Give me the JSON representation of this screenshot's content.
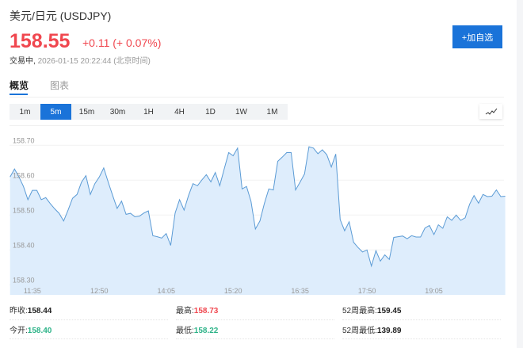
{
  "header": {
    "title": "美元/日元 (USDJPY)",
    "price": "158.55",
    "change": "+0.11 (+ 0.07%)",
    "status_label": "交易中,",
    "timestamp": "2026-01-15 20:22:44 (北京时间)",
    "add_button": "+加自选"
  },
  "tabs": [
    {
      "label": "概览",
      "active": true
    },
    {
      "label": "图表",
      "active": false
    }
  ],
  "intervals": [
    {
      "label": "1m"
    },
    {
      "label": "5m",
      "active": true
    },
    {
      "label": "15m"
    },
    {
      "label": "30m"
    },
    {
      "label": "1H"
    },
    {
      "label": "4H"
    },
    {
      "label": "1D"
    },
    {
      "label": "1W"
    },
    {
      "label": "1M"
    }
  ],
  "chart_type_icon": "line-chart-icon",
  "colors": {
    "up": "#f0474f",
    "down": "#2db388",
    "accent": "#1a73d9",
    "line": "#5b9bd5",
    "fill": "#deedfc"
  },
  "chart_data": {
    "type": "area",
    "ylim": [
      158.3,
      158.72
    ],
    "yticks": [
      "158.30",
      "158.40",
      "158.50",
      "158.60",
      "158.70"
    ],
    "xticks": [
      "11:35",
      "12:50",
      "14:05",
      "15:20",
      "16:35",
      "17:50",
      "19:05"
    ],
    "grid": true,
    "x": [
      "11:10",
      "11:15",
      "11:20",
      "11:25",
      "11:30",
      "11:35",
      "11:40",
      "11:45",
      "11:50",
      "11:55",
      "12:00",
      "12:05",
      "12:10",
      "12:15",
      "12:20",
      "12:25",
      "12:30",
      "12:35",
      "12:40",
      "12:45",
      "12:50",
      "12:55",
      "13:00",
      "13:05",
      "13:10",
      "13:15",
      "13:20",
      "13:25",
      "13:30",
      "13:35",
      "13:40",
      "13:45",
      "13:50",
      "13:55",
      "14:00",
      "14:05",
      "14:10",
      "14:15",
      "14:20",
      "14:25",
      "14:30",
      "14:35",
      "14:40",
      "14:45",
      "14:50",
      "14:55",
      "15:00",
      "15:05",
      "15:10",
      "15:15",
      "15:20",
      "15:25",
      "15:30",
      "15:35",
      "15:40",
      "15:45",
      "15:50",
      "15:55",
      "16:00",
      "16:05",
      "16:10",
      "16:15",
      "16:20",
      "16:25",
      "16:30",
      "16:35",
      "16:40",
      "16:45",
      "16:50",
      "16:55",
      "17:00",
      "17:05",
      "17:10",
      "17:15",
      "17:20",
      "17:25",
      "17:30",
      "17:35",
      "17:40",
      "17:45",
      "17:50",
      "17:55",
      "18:00",
      "18:05",
      "18:10",
      "18:15",
      "18:20",
      "18:25",
      "18:30",
      "18:35",
      "18:40",
      "18:45",
      "18:50",
      "18:55",
      "19:00",
      "19:05",
      "19:10",
      "19:15",
      "19:20",
      "19:25",
      "19:30",
      "19:35",
      "19:40",
      "19:45",
      "19:50",
      "19:55",
      "20:00",
      "20:05",
      "20:10",
      "20:15",
      "20:20",
      "20:25"
    ],
    "values": [
      158.609,
      158.632,
      158.609,
      158.582,
      158.544,
      158.571,
      158.571,
      158.544,
      158.55,
      158.533,
      158.518,
      158.505,
      158.483,
      158.514,
      158.548,
      158.559,
      158.594,
      158.613,
      158.559,
      158.59,
      158.609,
      158.635,
      158.594,
      158.556,
      158.519,
      158.54,
      158.502,
      158.505,
      158.495,
      158.497,
      158.506,
      158.512,
      158.441,
      158.438,
      158.434,
      158.447,
      158.413,
      158.506,
      158.544,
      158.514,
      158.556,
      158.59,
      158.584,
      158.601,
      158.616,
      158.595,
      158.622,
      158.584,
      158.632,
      158.679,
      158.67,
      158.692,
      158.575,
      158.582,
      158.54,
      158.46,
      158.483,
      158.533,
      158.575,
      158.572,
      158.654,
      158.666,
      158.679,
      158.679,
      158.572,
      158.594,
      158.618,
      158.696,
      158.692,
      158.676,
      158.687,
      158.673,
      158.638,
      158.675,
      158.487,
      158.455,
      158.481,
      158.422,
      158.407,
      158.394,
      158.4,
      158.354,
      158.398,
      158.368,
      158.386,
      158.373,
      158.436,
      158.438,
      158.44,
      158.432,
      158.441,
      158.437,
      158.437,
      158.463,
      158.47,
      158.444,
      158.472,
      158.462,
      158.495,
      158.485,
      158.5,
      158.485,
      158.492,
      158.531,
      158.556,
      158.534,
      158.559,
      158.553,
      158.554,
      158.572,
      158.553,
      158.554
    ]
  },
  "stats": [
    [
      {
        "label": "昨收:",
        "value": "158.44",
        "color": "#222"
      },
      {
        "label": "最高:",
        "value": "158.73",
        "color": "#f0474f"
      },
      {
        "label": "52周最高:",
        "value": "159.45",
        "color": "#222"
      }
    ],
    [
      {
        "label": "今开:",
        "value": "158.40",
        "color": "#2db388"
      },
      {
        "label": "最低:",
        "value": "158.22",
        "color": "#2db388"
      },
      {
        "label": "52周最低:",
        "value": "139.89",
        "color": "#222"
      }
    ]
  ]
}
